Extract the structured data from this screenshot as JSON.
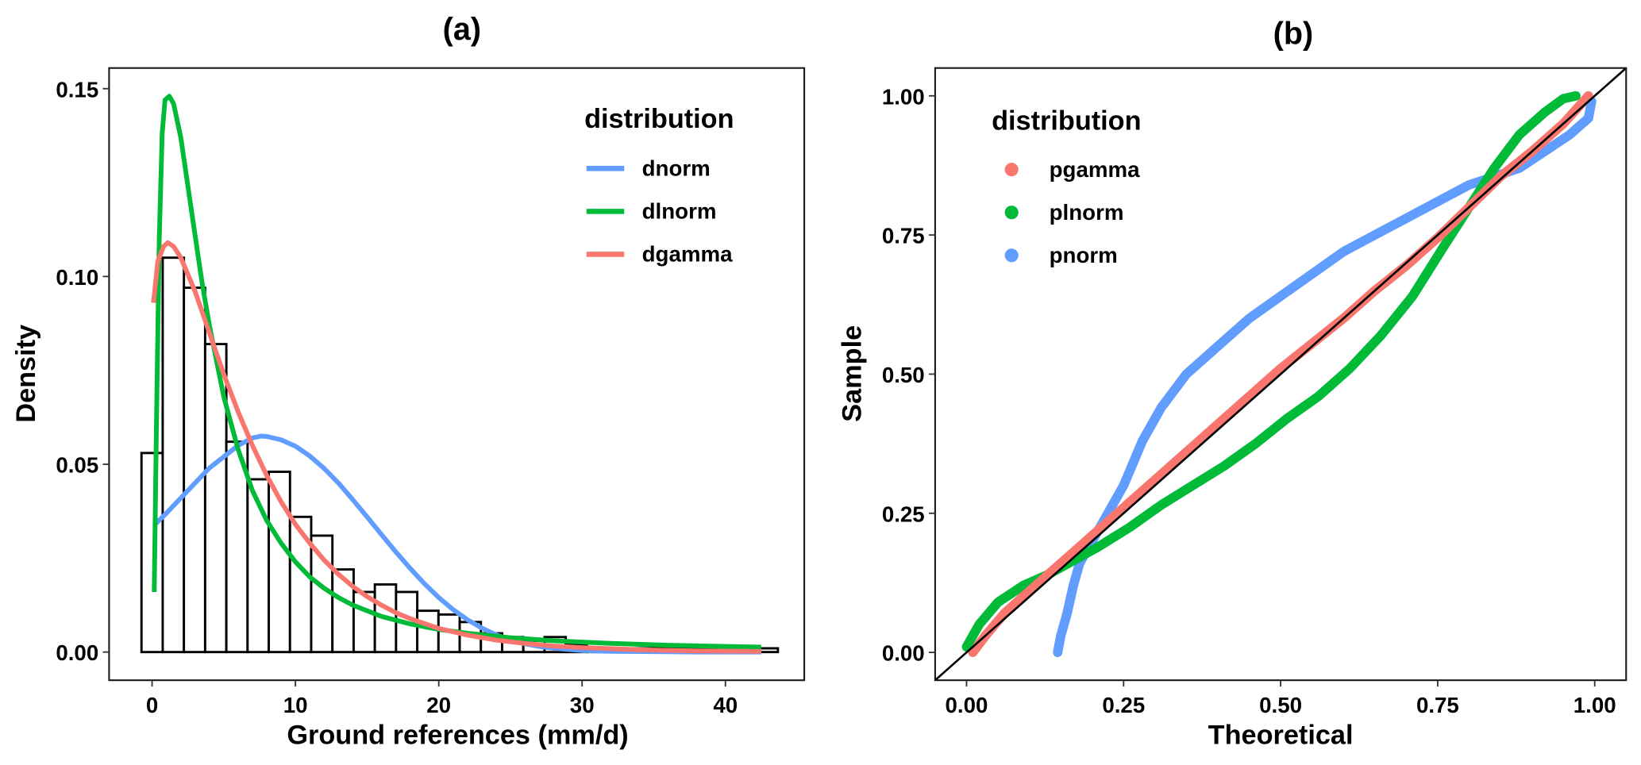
{
  "chart_data": [
    {
      "type": "bar",
      "panel_label": "(a)",
      "title": "(a)",
      "xlabel": "Ground references (mm/d)",
      "ylabel": "Density",
      "xlim": [
        -3,
        45.5
      ],
      "ylim": [
        -0.0075,
        0.1555
      ],
      "xticks": [
        0,
        10,
        20,
        30,
        40
      ],
      "xtick_labels": [
        "0",
        "10",
        "20",
        "30",
        "40"
      ],
      "yticks": [
        0.0,
        0.05,
        0.1,
        0.15
      ],
      "ytick_labels": [
        "0.00",
        "0.05",
        "0.10",
        "0.15"
      ],
      "grid": false,
      "histogram": {
        "bin_start": -0.74,
        "bin_width": 1.48,
        "density": [
          0.053,
          0.105,
          0.097,
          0.082,
          0.056,
          0.046,
          0.048,
          0.036,
          0.031,
          0.022,
          0.016,
          0.018,
          0.016,
          0.011,
          0.01,
          0.008,
          0.005,
          0.004,
          0.003,
          0.004,
          0.002,
          0.001,
          0.001,
          0.001,
          0.001,
          0.001,
          0.001,
          0.001,
          0.001,
          0.001
        ]
      },
      "legend": {
        "title": "distribution",
        "position": "top-right",
        "entries": [
          {
            "label": "dnorm",
            "color": "#619CFF"
          },
          {
            "label": "dlnorm",
            "color": "#00BA38"
          },
          {
            "label": "dgamma",
            "color": "#F8766D"
          }
        ]
      },
      "series": [
        {
          "name": "dnorm",
          "color": "#619CFF",
          "x": [
            0.2,
            1,
            2,
            3,
            4,
            5,
            6,
            7,
            7.6,
            8,
            9,
            10,
            11,
            12,
            13,
            14,
            15,
            16,
            17,
            18,
            19,
            20,
            21,
            22,
            23,
            24,
            25,
            26,
            27,
            28,
            30,
            32,
            35,
            38,
            42.5
          ],
          "y": [
            0.034,
            0.037,
            0.041,
            0.045,
            0.049,
            0.052,
            0.055,
            0.057,
            0.0575,
            0.0574,
            0.0565,
            0.0548,
            0.0522,
            0.0489,
            0.045,
            0.0406,
            0.036,
            0.0313,
            0.0267,
            0.0223,
            0.0182,
            0.0145,
            0.0113,
            0.0086,
            0.0064,
            0.0046,
            0.0032,
            0.0022,
            0.0015,
            0.001,
            0.0004,
            0.0002,
            0.0001,
            0.0,
            0.0
          ]
        },
        {
          "name": "dlnorm",
          "color": "#00BA38",
          "x": [
            0.15,
            0.3,
            0.5,
            0.7,
            0.9,
            1.2,
            1.5,
            2,
            2.5,
            3,
            3.5,
            4,
            5,
            6,
            7,
            8,
            9,
            10,
            11,
            12,
            13,
            14,
            15,
            16,
            18,
            20,
            22,
            25,
            28,
            32,
            36,
            42.5
          ],
          "y": [
            0.016,
            0.06,
            0.11,
            0.138,
            0.147,
            0.148,
            0.146,
            0.137,
            0.124,
            0.111,
            0.098,
            0.087,
            0.068,
            0.054,
            0.043,
            0.035,
            0.029,
            0.024,
            0.02,
            0.017,
            0.0145,
            0.0125,
            0.011,
            0.0095,
            0.0075,
            0.006,
            0.005,
            0.0038,
            0.003,
            0.0023,
            0.0018,
            0.0013
          ]
        },
        {
          "name": "dgamma",
          "color": "#F8766D",
          "x": [
            0.1,
            0.4,
            0.8,
            1.1,
            1.5,
            2,
            3,
            4,
            5,
            6,
            7,
            8,
            9,
            10,
            11,
            12,
            13,
            14,
            15,
            16,
            17,
            18,
            20,
            22,
            24,
            26,
            28,
            30,
            34,
            38,
            42.5
          ],
          "y": [
            0.093,
            0.104,
            0.108,
            0.109,
            0.108,
            0.105,
            0.096,
            0.085,
            0.074,
            0.064,
            0.055,
            0.047,
            0.04,
            0.034,
            0.029,
            0.0245,
            0.0207,
            0.0175,
            0.0148,
            0.0125,
            0.0105,
            0.0089,
            0.0063,
            0.0045,
            0.0032,
            0.0023,
            0.0016,
            0.0012,
            0.0006,
            0.0003,
            0.0002
          ]
        }
      ]
    },
    {
      "type": "scatter",
      "panel_label": "(b)",
      "title": "(b)",
      "xlabel": "Theoretical",
      "ylabel": "Sample",
      "xlim": [
        -0.05,
        1.05
      ],
      "ylim": [
        -0.05,
        1.05
      ],
      "xticks": [
        0.0,
        0.25,
        0.5,
        0.75,
        1.0
      ],
      "xtick_labels": [
        "0.00",
        "0.25",
        "0.50",
        "0.75",
        "1.00"
      ],
      "yticks": [
        0.0,
        0.25,
        0.5,
        0.75,
        1.0
      ],
      "ytick_labels": [
        "0.00",
        "0.25",
        "0.50",
        "0.75",
        "1.00"
      ],
      "grid": false,
      "reference_line": {
        "slope": 1,
        "intercept": 0,
        "color": "#000000"
      },
      "legend": {
        "title": "distribution",
        "position": "top-left",
        "entries": [
          {
            "label": "pgamma",
            "color": "#F8766D"
          },
          {
            "label": "plnorm",
            "color": "#00BA38"
          },
          {
            "label": "pnorm",
            "color": "#619CFF"
          }
        ]
      },
      "series": [
        {
          "name": "pgamma",
          "color": "#F8766D",
          "x": [
            0.01,
            0.03,
            0.06,
            0.1,
            0.14,
            0.18,
            0.22,
            0.26,
            0.3,
            0.35,
            0.4,
            0.45,
            0.5,
            0.55,
            0.6,
            0.65,
            0.7,
            0.75,
            0.8,
            0.85,
            0.9,
            0.95,
            0.99
          ],
          "y": [
            0.0,
            0.03,
            0.07,
            0.11,
            0.15,
            0.19,
            0.23,
            0.27,
            0.31,
            0.36,
            0.41,
            0.46,
            0.51,
            0.555,
            0.6,
            0.65,
            0.695,
            0.745,
            0.8,
            0.855,
            0.9,
            0.95,
            1.0
          ]
        },
        {
          "name": "plnorm",
          "color": "#00BA38",
          "x": [
            0.0,
            0.02,
            0.05,
            0.09,
            0.13,
            0.17,
            0.21,
            0.26,
            0.31,
            0.36,
            0.41,
            0.46,
            0.51,
            0.56,
            0.61,
            0.66,
            0.71,
            0.76,
            0.8,
            0.84,
            0.88,
            0.92,
            0.95,
            0.97
          ],
          "y": [
            0.01,
            0.05,
            0.09,
            0.12,
            0.14,
            0.165,
            0.19,
            0.225,
            0.265,
            0.3,
            0.335,
            0.375,
            0.42,
            0.46,
            0.51,
            0.57,
            0.64,
            0.73,
            0.8,
            0.87,
            0.93,
            0.97,
            0.995,
            1.0
          ]
        },
        {
          "name": "pnorm",
          "color": "#619CFF",
          "x": [
            0.145,
            0.15,
            0.16,
            0.17,
            0.18,
            0.2,
            0.22,
            0.25,
            0.28,
            0.31,
            0.35,
            0.4,
            0.45,
            0.5,
            0.55,
            0.6,
            0.65,
            0.7,
            0.75,
            0.8,
            0.84,
            0.88,
            0.92,
            0.96,
            0.99,
            0.995
          ],
          "y": [
            0.0,
            0.03,
            0.07,
            0.12,
            0.16,
            0.2,
            0.24,
            0.3,
            0.38,
            0.44,
            0.5,
            0.55,
            0.6,
            0.64,
            0.68,
            0.72,
            0.75,
            0.78,
            0.81,
            0.84,
            0.855,
            0.87,
            0.9,
            0.93,
            0.96,
            0.99
          ]
        }
      ]
    }
  ]
}
